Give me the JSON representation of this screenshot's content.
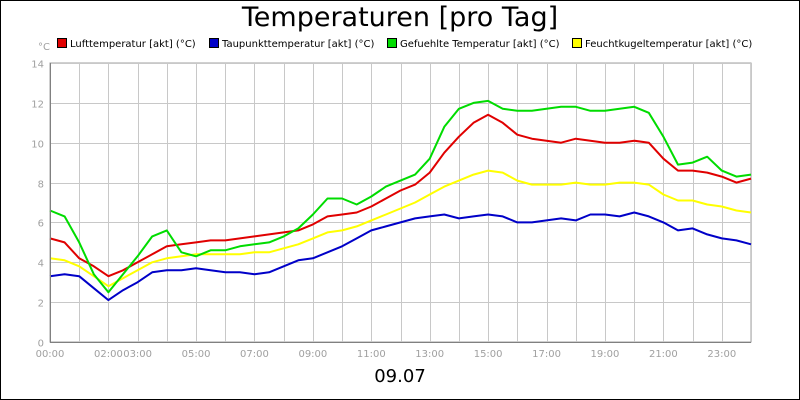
{
  "chart_data": {
    "type": "line",
    "title": "Temperaturen [pro Tag]",
    "y_unit": "°C",
    "date_label": "09.07",
    "ylim": [
      0,
      14
    ],
    "y_ticks": [
      0,
      2,
      4,
      6,
      8,
      10,
      12,
      14
    ],
    "xlim_hours": [
      0,
      24
    ],
    "x_ticks": [
      {
        "h": 0,
        "label": "00:00"
      },
      {
        "h": 2,
        "label": "02:00"
      },
      {
        "h": 3,
        "label": "03:00"
      },
      {
        "h": 5,
        "label": "05:00"
      },
      {
        "h": 7,
        "label": "07:00"
      },
      {
        "h": 9,
        "label": "09:00"
      },
      {
        "h": 11,
        "label": "11:00"
      },
      {
        "h": 13,
        "label": "13:00"
      },
      {
        "h": 15,
        "label": "15:00"
      },
      {
        "h": 17,
        "label": "17:00"
      },
      {
        "h": 19,
        "label": "19:00"
      },
      {
        "h": 21,
        "label": "21:00"
      },
      {
        "h": 23,
        "label": "23:00"
      }
    ],
    "grid": true,
    "legend_position": "top",
    "x_hours": [
      0,
      0.5,
      1,
      1.5,
      2,
      2.5,
      3,
      3.5,
      4,
      4.5,
      5,
      5.5,
      6,
      6.5,
      7,
      7.5,
      8,
      8.5,
      9,
      9.5,
      10,
      10.5,
      11,
      11.5,
      12,
      12.5,
      13,
      13.5,
      14,
      14.5,
      15,
      15.5,
      16,
      16.5,
      17,
      17.5,
      18,
      18.5,
      19,
      19.5,
      20,
      20.5,
      21,
      21.5,
      22,
      22.5,
      23,
      23.5,
      24
    ],
    "series": [
      {
        "name": "Lufttemperatur [akt] (°C)",
        "color": "#e00000",
        "values": [
          5.2,
          5.0,
          4.2,
          3.8,
          3.3,
          3.6,
          4.0,
          4.4,
          4.8,
          4.9,
          5.0,
          5.1,
          5.1,
          5.2,
          5.3,
          5.4,
          5.5,
          5.6,
          5.9,
          6.3,
          6.4,
          6.5,
          6.8,
          7.2,
          7.6,
          7.9,
          8.5,
          9.5,
          10.3,
          11.0,
          11.4,
          11.0,
          10.4,
          10.2,
          10.1,
          10.0,
          10.2,
          10.1,
          10.0,
          10.0,
          10.1,
          10.0,
          9.2,
          8.6,
          8.6,
          8.5,
          8.3,
          8.0,
          8.2
        ]
      },
      {
        "name": "Taupunkttemperatur [akt] (°C)",
        "color": "#0000c8",
        "values": [
          3.3,
          3.4,
          3.3,
          2.7,
          2.1,
          2.6,
          3.0,
          3.5,
          3.6,
          3.6,
          3.7,
          3.6,
          3.5,
          3.5,
          3.4,
          3.5,
          3.8,
          4.1,
          4.2,
          4.5,
          4.8,
          5.2,
          5.6,
          5.8,
          6.0,
          6.2,
          6.3,
          6.4,
          6.2,
          6.3,
          6.4,
          6.3,
          6.0,
          6.0,
          6.1,
          6.2,
          6.1,
          6.4,
          6.4,
          6.3,
          6.5,
          6.3,
          6.0,
          5.6,
          5.7,
          5.4,
          5.2,
          5.1,
          4.9
        ]
      },
      {
        "name": "Gefuehlte Temperatur [akt] (°C)",
        "color": "#00dc00",
        "values": [
          6.6,
          6.3,
          5.0,
          3.4,
          2.5,
          3.4,
          4.3,
          5.3,
          5.6,
          4.5,
          4.3,
          4.6,
          4.6,
          4.8,
          4.9,
          5.0,
          5.3,
          5.7,
          6.4,
          7.2,
          7.2,
          6.9,
          7.3,
          7.8,
          8.1,
          8.4,
          9.2,
          10.8,
          11.7,
          12.0,
          12.1,
          11.7,
          11.6,
          11.6,
          11.7,
          11.8,
          11.8,
          11.6,
          11.6,
          11.7,
          11.8,
          11.5,
          10.3,
          8.9,
          9.0,
          9.3,
          8.6,
          8.3,
          8.4
        ]
      },
      {
        "name": "Feuchtkugeltemperatur [akt] (°C)",
        "color": "#ffff00",
        "values": [
          4.2,
          4.1,
          3.8,
          3.3,
          2.8,
          3.2,
          3.6,
          4.0,
          4.2,
          4.3,
          4.4,
          4.4,
          4.4,
          4.4,
          4.5,
          4.5,
          4.7,
          4.9,
          5.2,
          5.5,
          5.6,
          5.8,
          6.1,
          6.4,
          6.7,
          7.0,
          7.4,
          7.8,
          8.1,
          8.4,
          8.6,
          8.5,
          8.1,
          7.9,
          7.9,
          7.9,
          8.0,
          7.9,
          7.9,
          8.0,
          8.0,
          7.9,
          7.4,
          7.1,
          7.1,
          6.9,
          6.8,
          6.6,
          6.5
        ]
      }
    ]
  }
}
